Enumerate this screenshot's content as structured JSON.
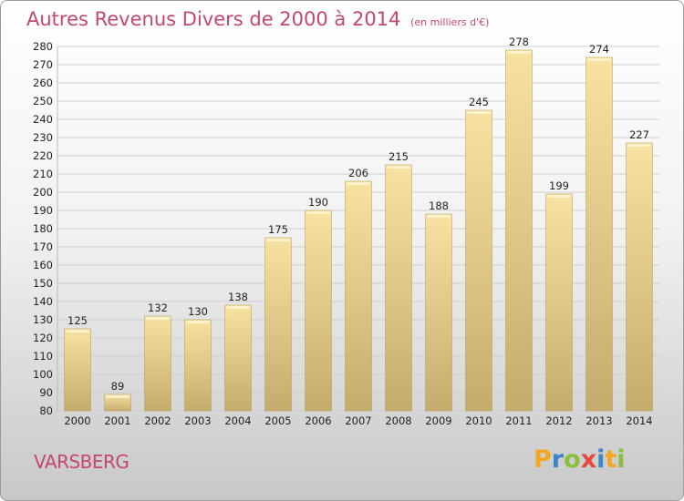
{
  "title": "Autres Revenus Divers de 2000 à 2014",
  "unit": "(en milliers d'€)",
  "commune": "VARSBERG",
  "logo": [
    "P",
    "r",
    "o",
    "x",
    "i",
    "t",
    "i"
  ],
  "colors": {
    "title": "#c4476f",
    "bar_light": "#f8e2a2",
    "bar_dark": "#c4ac6c",
    "grid": "#cfcfcf"
  },
  "chart_data": {
    "type": "bar",
    "categories": [
      "2000",
      "2001",
      "2002",
      "2003",
      "2004",
      "2005",
      "2006",
      "2007",
      "2008",
      "2009",
      "2010",
      "2011",
      "2012",
      "2013",
      "2014"
    ],
    "values": [
      125,
      89,
      132,
      130,
      138,
      175,
      190,
      206,
      215,
      188,
      245,
      278,
      199,
      274,
      227
    ],
    "title": "Autres Revenus Divers de 2000 à 2014",
    "xlabel": "",
    "ylabel": "",
    "ylim": [
      80,
      280
    ],
    "yticks": [
      80,
      90,
      100,
      110,
      120,
      130,
      140,
      150,
      160,
      170,
      180,
      190,
      200,
      210,
      220,
      230,
      240,
      250,
      260,
      270,
      280
    ],
    "grid": true,
    "legend": "none"
  }
}
